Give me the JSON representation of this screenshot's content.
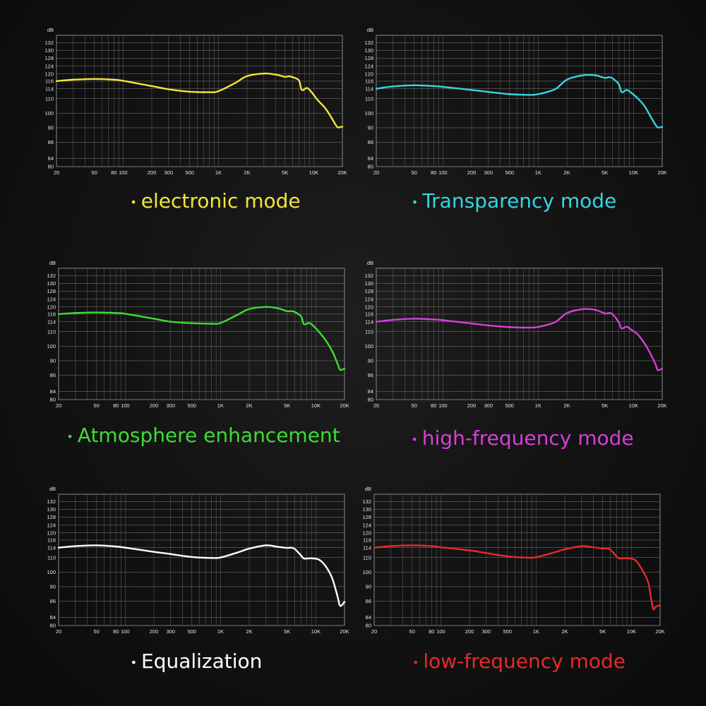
{
  "axes": {
    "y_unit": "dB",
    "y_ticks": [
      "132",
      "130",
      "128",
      "124",
      "120",
      "116",
      "114",
      "110",
      "100",
      "90",
      "86",
      "84",
      "80"
    ],
    "x_ticks": [
      "20",
      "50",
      "80",
      "100",
      "200",
      "300",
      "500",
      "1K",
      "2K",
      "5K",
      "10K",
      "20K"
    ],
    "x_tick_values": [
      20,
      50,
      80,
      100,
      200,
      300,
      500,
      1000,
      2000,
      5000,
      10000,
      20000
    ],
    "x_range": [
      20,
      20000
    ]
  },
  "captions": [
    {
      "bullet": "•",
      "text": "electronic mode"
    },
    {
      "bullet": "•",
      "text": "Transparency mode"
    },
    {
      "bullet": "•",
      "text": "Atmosphere enhancement"
    },
    {
      "bullet": "•",
      "text": "high-frequency mode"
    },
    {
      "bullet": "•",
      "text": "Equalization"
    },
    {
      "bullet": "•",
      "text": "low-frequency mode"
    }
  ],
  "chart_data": [
    {
      "type": "line",
      "name": "electronic mode",
      "color": "#f2e63a",
      "x": [
        20,
        30,
        50,
        80,
        100,
        200,
        300,
        500,
        800,
        1000,
        1500,
        2000,
        3000,
        4000,
        5000,
        5500,
        6000,
        7000,
        7500,
        8500,
        9500,
        11000,
        13000,
        15000,
        17000,
        18000,
        20000
      ],
      "y": [
        116,
        116.8,
        117.2,
        116.8,
        116.2,
        114.7,
        113.8,
        112.8,
        112.6,
        113,
        115.5,
        118.8,
        120.2,
        119.6,
        118.4,
        118.7,
        118.2,
        116.4,
        113.5,
        114.2,
        112.6,
        109,
        104,
        98,
        92,
        90.2,
        90.8
      ]
    },
    {
      "type": "line",
      "name": "Transparency mode",
      "color": "#35d6de",
      "x": [
        20,
        30,
        50,
        80,
        100,
        200,
        300,
        500,
        800,
        1000,
        1500,
        2000,
        3000,
        4000,
        5000,
        5500,
        6000,
        7000,
        7500,
        8500,
        9500,
        11000,
        13000,
        15000,
        17000,
        18000,
        20000
      ],
      "y": [
        114,
        114.6,
        114.9,
        114.7,
        114.5,
        113.5,
        112.7,
        111.8,
        111.5,
        111.8,
        113.8,
        116.8,
        119.3,
        119.2,
        117.8,
        118.2,
        117.6,
        115.2,
        112.6,
        113.5,
        112.3,
        110.2,
        105,
        98,
        92,
        90.2,
        90.6
      ]
    },
    {
      "type": "line",
      "name": "Atmosphere enhancement",
      "color": "#3ddc35",
      "x": [
        20,
        30,
        50,
        80,
        100,
        200,
        300,
        500,
        800,
        1000,
        1500,
        2000,
        3000,
        4000,
        5000,
        5500,
        6000,
        7000,
        7500,
        8500,
        9500,
        11000,
        13000,
        15000,
        17000,
        18000,
        20000
      ],
      "y": [
        116,
        116.6,
        116.9,
        116.6,
        116.2,
        114.8,
        114,
        113.4,
        113.2,
        113.5,
        115.8,
        118.8,
        120,
        119.2,
        117.6,
        117.7,
        117.2,
        115.4,
        113,
        113.5,
        112.2,
        109.2,
        103,
        96,
        89,
        87.5,
        87.8
      ]
    },
    {
      "type": "line",
      "name": "high-frequency mode",
      "color": "#d63fd9",
      "x": [
        20,
        30,
        50,
        80,
        100,
        200,
        300,
        500,
        800,
        1000,
        1500,
        2000,
        3000,
        4000,
        5000,
        5500,
        6000,
        7000,
        7500,
        8500,
        9500,
        11000,
        13000,
        15000,
        17000,
        18000,
        20000
      ],
      "y": [
        114,
        114.5,
        114.8,
        114.6,
        114.4,
        113.3,
        112.5,
        111.8,
        111.6,
        111.9,
        113.8,
        116.6,
        118.8,
        118.3,
        116.4,
        116.6,
        116,
        113.8,
        111.3,
        112,
        110.7,
        108.2,
        102,
        95,
        89,
        87.4,
        87.8
      ]
    },
    {
      "type": "line",
      "name": "Equalization",
      "color": "#ffffff",
      "x": [
        20,
        30,
        50,
        80,
        100,
        200,
        300,
        500,
        800,
        1000,
        1500,
        2000,
        3000,
        4000,
        5000,
        5500,
        6000,
        7000,
        7500,
        8500,
        9500,
        11000,
        13000,
        15000,
        17000,
        18000,
        20000
      ],
      "y": [
        114,
        114.4,
        114.6,
        114.3,
        114,
        112.3,
        111.4,
        110.2,
        109.7,
        110,
        112,
        113.6,
        114.6,
        114.2,
        113.9,
        114,
        113.5,
        110.8,
        109.3,
        109.4,
        109.3,
        108.2,
        103,
        95,
        87,
        85.4,
        85.9
      ]
    },
    {
      "type": "line",
      "name": "low-frequency mode",
      "color": "#e52a2a",
      "x": [
        20,
        30,
        50,
        80,
        100,
        200,
        300,
        500,
        800,
        1000,
        1500,
        2000,
        3000,
        4000,
        5000,
        5500,
        6000,
        7000,
        7500,
        8500,
        9500,
        11000,
        13000,
        15000,
        16000,
        17000,
        18000,
        20000
      ],
      "y": [
        114,
        114.4,
        114.6,
        114.4,
        114.1,
        112.9,
        111.8,
        110.5,
        109.9,
        110.1,
        111.9,
        113.3,
        114.4,
        114.1,
        113.6,
        113.7,
        113.2,
        110.4,
        109.3,
        109.5,
        109.3,
        108.1,
        101.5,
        93,
        87,
        85,
        85.3,
        85.5
      ]
    }
  ]
}
